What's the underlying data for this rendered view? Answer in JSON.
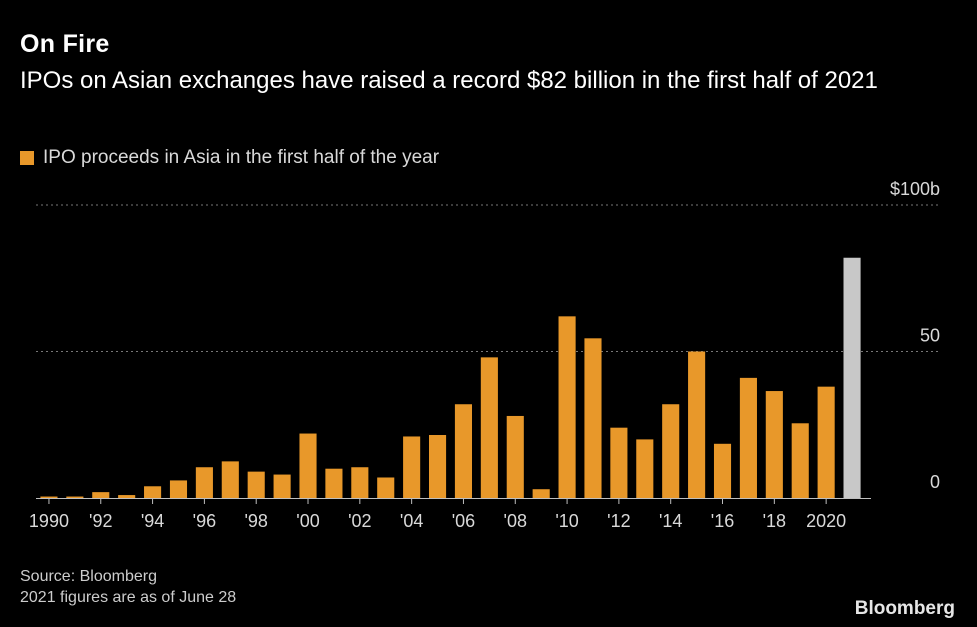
{
  "title": "On Fire",
  "subtitle": "IPOs on Asian exchanges have raised a record $82 billion in the first half of 2021",
  "legend_label": "IPO proceeds in Asia in the first half of the year",
  "source": "Source: Bloomberg",
  "note": "2021 figures are as of June 28",
  "brand": "Bloomberg",
  "colors": {
    "bar": "#e8982a",
    "highlight": "#c8c8c8",
    "grid": "#777777",
    "background": "#000000"
  },
  "chart_data": {
    "type": "bar",
    "series": [
      {
        "name": "IPO proceeds in Asia in the first half of the year",
        "x": [
          1990,
          1991,
          1992,
          1993,
          1994,
          1995,
          1996,
          1997,
          1998,
          1999,
          2000,
          2001,
          2002,
          2003,
          2004,
          2005,
          2006,
          2007,
          2008,
          2009,
          2010,
          2011,
          2012,
          2013,
          2014,
          2015,
          2016,
          2017,
          2018,
          2019,
          2020,
          2021
        ],
        "values": [
          0.5,
          0.5,
          2,
          1,
          4,
          6,
          10.5,
          12.5,
          9,
          8,
          22,
          10,
          10.5,
          7,
          21,
          21.5,
          32,
          48,
          28,
          3,
          62,
          54.5,
          24,
          20,
          32,
          50,
          18.5,
          41,
          36.5,
          25.5,
          38,
          82
        ]
      }
    ],
    "highlight_x": 2021,
    "x_tick_labels": [
      "1990",
      "'92",
      "'94",
      "'96",
      "'98",
      "'00",
      "'02",
      "'04",
      "'06",
      "'08",
      "'10",
      "'12",
      "'14",
      "'16",
      "'18",
      "2020"
    ],
    "y_tick_labels": [
      "$100b",
      "50",
      "0"
    ],
    "y_ticks": [
      100,
      50,
      0
    ],
    "ylim": [
      0,
      100
    ],
    "grid": true,
    "y_axis_side": "right"
  }
}
